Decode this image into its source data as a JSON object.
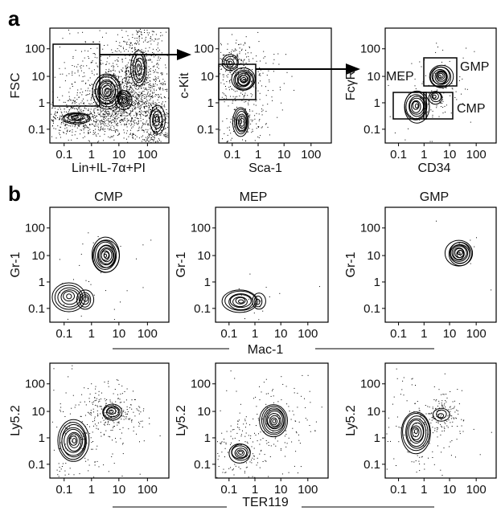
{
  "panel_a": {
    "letter": "a",
    "plots": [
      {
        "id": "a1",
        "ylabel": "FSC",
        "xlabel": "Lin+IL-7α+PI",
        "xticks": [
          "0.1",
          "1",
          "10",
          "100"
        ],
        "yticks": [
          "0.1",
          "1",
          "10",
          "100"
        ]
      },
      {
        "id": "a2",
        "ylabel": "c-Kit",
        "xlabel": "Sca-1",
        "xticks": [
          "0.1",
          "1",
          "10",
          "100"
        ],
        "yticks": [
          "0.1",
          "1",
          "10",
          "100"
        ]
      },
      {
        "id": "a3",
        "ylabel": "FcγR",
        "xlabel": "CD34",
        "xticks": [
          "0.1",
          "1",
          "10",
          "100"
        ],
        "yticks": [
          "0.1",
          "1",
          "10",
          "100"
        ],
        "gates": [
          "MEP",
          "GMP",
          "CMP"
        ]
      }
    ]
  },
  "panel_b": {
    "letter": "b",
    "columns": [
      "CMP",
      "MEP",
      "GMP"
    ],
    "row1": {
      "ylabel": "Gr-1",
      "shared_xlabel": "Mac-1"
    },
    "row2": {
      "ylabel": "Ly5.2",
      "shared_xlabel": "TER119"
    },
    "xticks": [
      "0.1",
      "1",
      "10",
      "100"
    ],
    "yticks": [
      "0.1",
      "1",
      "10",
      "100"
    ]
  }
}
